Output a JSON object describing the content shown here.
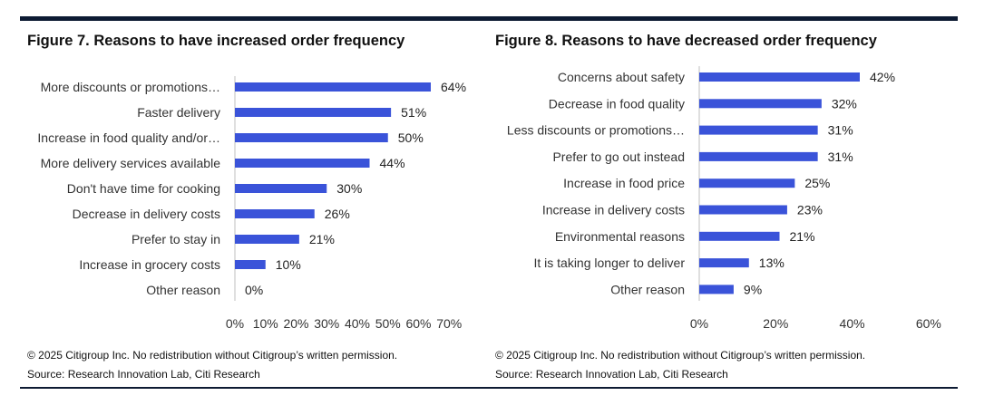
{
  "figures": [
    {
      "title": "Figure 7. Reasons to have increased order frequency",
      "copyright": "© 2025 Citigroup Inc. No redistribution without Citigroup’s written permission.",
      "source": "Source: Research Innovation Lab, Citi Research"
    },
    {
      "title": "Figure 8. Reasons to have decreased order frequency",
      "copyright": "© 2025 Citigroup Inc. No redistribution without Citigroup’s written permission.",
      "source": "Source: Research Innovation Lab, Citi Research"
    }
  ],
  "colors": {
    "bar": "#3a53d9",
    "axis": "#bfbfbf",
    "rule": "#0d1b33"
  },
  "chart_data": [
    {
      "type": "bar",
      "orientation": "horizontal",
      "title": "Figure 7. Reasons to have increased order frequency",
      "categories": [
        "More discounts or promotions…",
        "Faster delivery",
        "Increase in food quality and/or…",
        "More delivery services available",
        "Don't have time for cooking",
        "Decrease in delivery costs",
        "Prefer to stay in",
        "Increase in grocery costs",
        "Other reason"
      ],
      "values": [
        64,
        51,
        50,
        44,
        30,
        26,
        21,
        10,
        0
      ],
      "value_labels": [
        "64%",
        "51%",
        "50%",
        "44%",
        "30%",
        "26%",
        "21%",
        "10%",
        "0%"
      ],
      "xlim": [
        0,
        70
      ],
      "ticks": [
        0,
        10,
        20,
        30,
        40,
        50,
        60,
        70
      ],
      "tick_labels": [
        "0%",
        "10%",
        "20%",
        "30%",
        "40%",
        "50%",
        "60%",
        "70%"
      ],
      "grid": false
    },
    {
      "type": "bar",
      "orientation": "horizontal",
      "title": "Figure 8. Reasons to have decreased order frequency",
      "categories": [
        "Concerns about safety",
        "Decrease in food quality",
        "Less discounts or promotions…",
        "Prefer to go out instead",
        "Increase in food price",
        "Increase in delivery costs",
        "Environmental reasons",
        "It is taking longer to deliver",
        "Other reason"
      ],
      "values": [
        42,
        32,
        31,
        31,
        25,
        23,
        21,
        13,
        9
      ],
      "value_labels": [
        "42%",
        "32%",
        "31%",
        "31%",
        "25%",
        "23%",
        "21%",
        "13%",
        "9%"
      ],
      "xlim": [
        0,
        60
      ],
      "ticks": [
        0,
        20,
        40,
        60
      ],
      "tick_labels": [
        "0%",
        "20%",
        "40%",
        "60%"
      ],
      "grid": false
    }
  ]
}
